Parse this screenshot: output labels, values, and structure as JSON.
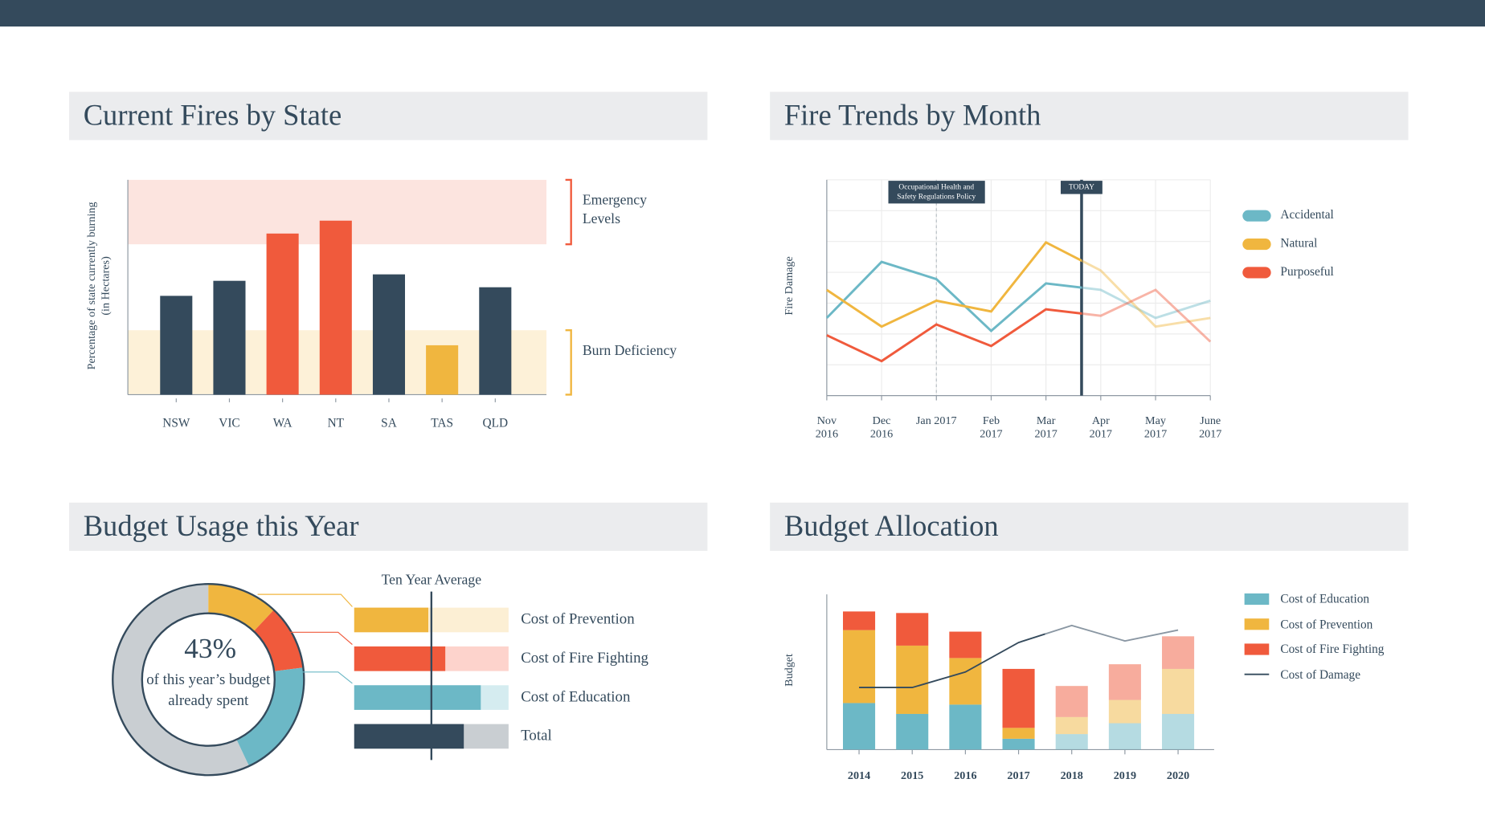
{
  "chart_data": [
    {
      "type": "bar",
      "title": "Current Fires by State",
      "y_label": "Percentage of state currently burning (in Hectares)",
      "categories": [
        "NSW",
        "VIC",
        "WA",
        "NT",
        "SA",
        "TAS",
        "QLD"
      ],
      "values": [
        46,
        53,
        75,
        81,
        56,
        23,
        50
      ],
      "colors": [
        "#344a5c",
        "#344a5c",
        "#f05a3c",
        "#f05a3c",
        "#344a5c",
        "#f0b63f",
        "#344a5c"
      ],
      "ylim": [
        0,
        100
      ],
      "bands": [
        {
          "label": "Emergency Levels",
          "range": [
            70,
            100
          ],
          "color": "#fce4df",
          "accent": "#f05a3c"
        },
        {
          "label": "Burn Deficiency",
          "range": [
            0,
            30
          ],
          "color": "#fdf1d8",
          "accent": "#f0b63f"
        }
      ]
    },
    {
      "type": "line",
      "title": "Fire Trends by Month",
      "y_label": "Fire Damage",
      "categories": [
        "Nov 2016",
        "Dec 2016",
        "Jan 2017",
        "Feb 2017",
        "Mar 2017",
        "Apr 2017",
        "May 2017",
        "June 2017"
      ],
      "series": [
        {
          "name": "Accidental",
          "color": "#6cb8c6",
          "values": [
            36,
            62,
            54,
            30,
            52,
            49,
            36,
            44
          ]
        },
        {
          "name": "Natural",
          "color": "#f0b63f",
          "values": [
            49,
            32,
            44,
            39,
            71,
            58,
            32,
            36
          ]
        },
        {
          "name": "Purposeful",
          "color": "#f05a3c",
          "values": [
            28,
            16,
            33,
            23,
            40,
            37,
            49,
            25
          ]
        }
      ],
      "ylim": [
        0,
        100
      ],
      "grid": true,
      "legend": "right",
      "annotations": [
        {
          "label": "Occupational Health and Safety Regulations Policy",
          "at": 2,
          "style": "dashed"
        },
        {
          "label": "TODAY",
          "at": 4.65,
          "style": "solid",
          "fade_after": true
        }
      ]
    },
    {
      "type": "usage",
      "title": "Budget Usage this Year",
      "donut": {
        "values": [
          12,
          11,
          20
        ],
        "total": 43,
        "total_label": "43%",
        "caption": "of this year’s budget already spent",
        "rest_color": "#c9ced2"
      },
      "bars": {
        "categories": [
          "Cost of Prevention",
          "Cost of Fire Fighting",
          "Cost of Education",
          "Total"
        ],
        "values": [
          48,
          59,
          82,
          71
        ],
        "colors": [
          "#f0b63f",
          "#f05a3c",
          "#6cb8c6",
          "#344a5c"
        ],
        "track_colors": [
          "#fcefd4",
          "#fdd3cc",
          "#d5ecf0",
          "#c9ced2"
        ],
        "xlim": [
          0,
          100
        ],
        "average": 50,
        "average_label": "Ten Year Average"
      }
    },
    {
      "type": "stacked",
      "title": "Budget Allocation",
      "y_label": "Budget",
      "categories": [
        "2014",
        "2015",
        "2016",
        "2017",
        "2018",
        "2019",
        "2020"
      ],
      "series": [
        {
          "name": "Cost of Education",
          "color": "#6cb8c6",
          "values": [
            30,
            23,
            29,
            7,
            10,
            17,
            23
          ]
        },
        {
          "name": "Cost of Prevention",
          "color": "#f0b63f",
          "values": [
            47,
            44,
            30,
            7,
            11,
            15,
            29
          ]
        },
        {
          "name": "Cost of Fire Fighting",
          "color": "#f05a3c",
          "values": [
            12,
            21,
            17,
            38,
            20,
            23,
            21
          ]
        }
      ],
      "line": {
        "name": "Cost of Damage",
        "color": "#344a5c",
        "forecast_color": "#8a97a3",
        "values": [
          40,
          40,
          50,
          69,
          80,
          70,
          77
        ]
      },
      "ylim": [
        0,
        100
      ],
      "forecast_from": "2018",
      "legend": "right"
    }
  ]
}
